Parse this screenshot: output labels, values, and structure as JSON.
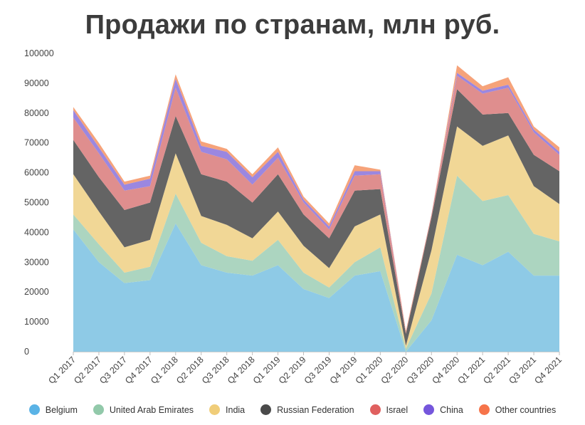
{
  "chart_data": {
    "type": "area",
    "stacked": true,
    "title": "Продажи по странам, млн руб.",
    "xlabel": "",
    "ylabel": "",
    "ylim": [
      0,
      100000
    ],
    "yticks": [
      "0",
      "10000",
      "20000",
      "30000",
      "40000",
      "50000",
      "60000",
      "70000",
      "80000",
      "90000",
      "100000"
    ],
    "grid": false,
    "legend_position": "bottom",
    "categories": [
      "Q1 2017",
      "Q2 2017",
      "Q3 2017",
      "Q4 2017",
      "Q1 2018",
      "Q2 2018",
      "Q3 2018",
      "Q4 2018",
      "Q1 2019",
      "Q2 2019",
      "Q3 2019",
      "Q4 2019",
      "Q1 2020",
      "Q2 2020",
      "Q3 2020",
      "Q4 2020",
      "Q1 2021",
      "Q2 2021",
      "Q3 2021",
      "Q4 2021"
    ],
    "series": [
      {
        "name": "Belgium",
        "color": "#8ecae6",
        "values": [
          41000,
          30000,
          23000,
          24000,
          43000,
          29000,
          26500,
          25500,
          29000,
          21000,
          18000,
          25500,
          27000,
          0,
          10500,
          32500,
          29000,
          33500,
          25500,
          25500
        ]
      },
      {
        "name": "United Arab Emirates",
        "color": "#acd5c0",
        "values": [
          5000,
          6000,
          3500,
          4500,
          10000,
          7500,
          5500,
          5000,
          8500,
          5500,
          3500,
          4500,
          8000,
          1000,
          9000,
          26500,
          21500,
          19000,
          14000,
          11500
        ]
      },
      {
        "name": "India",
        "color": "#f1d796",
        "values": [
          13500,
          11000,
          8500,
          9000,
          13500,
          9000,
          10500,
          7500,
          9500,
          9000,
          6500,
          12000,
          11000,
          1000,
          14500,
          16500,
          18500,
          20000,
          16000,
          12500
        ]
      },
      {
        "name": "Russian Federation",
        "color": "#646464",
        "values": [
          11500,
          11500,
          12500,
          12500,
          12500,
          14000,
          14500,
          12000,
          12500,
          10500,
          10000,
          12000,
          8500,
          4000,
          11000,
          12500,
          10500,
          7500,
          10500,
          11000
        ]
      },
      {
        "name": "Israel",
        "color": "#df8e8e",
        "values": [
          7500,
          8000,
          6500,
          5500,
          9500,
          7500,
          7500,
          6000,
          5500,
          4000,
          3000,
          5000,
          5000,
          500,
          1000,
          4500,
          7000,
          8500,
          7500,
          5500
        ]
      },
      {
        "name": "China",
        "color": "#9b87e0",
        "values": [
          2500,
          2000,
          2000,
          2500,
          3000,
          2000,
          2500,
          2500,
          2000,
          1000,
          1000,
          1500,
          1000,
          0,
          0,
          1000,
          1000,
          1000,
          1000,
          1000
        ]
      },
      {
        "name": "Other countries",
        "color": "#f6a37a",
        "values": [
          1000,
          1500,
          1000,
          1000,
          1500,
          1500,
          1000,
          1000,
          1500,
          1000,
          1000,
          2000,
          500,
          500,
          0,
          2500,
          1500,
          2500,
          1000,
          1500
        ]
      }
    ]
  },
  "legend_colors": {
    "Belgium": "#5ab3e6",
    "United Arab Emirates": "#92c9aa",
    "India": "#f0cd79",
    "Russian Federation": "#4a4a4a",
    "Israel": "#e0605f",
    "China": "#7556dc",
    "Other countries": "#f6744a"
  }
}
